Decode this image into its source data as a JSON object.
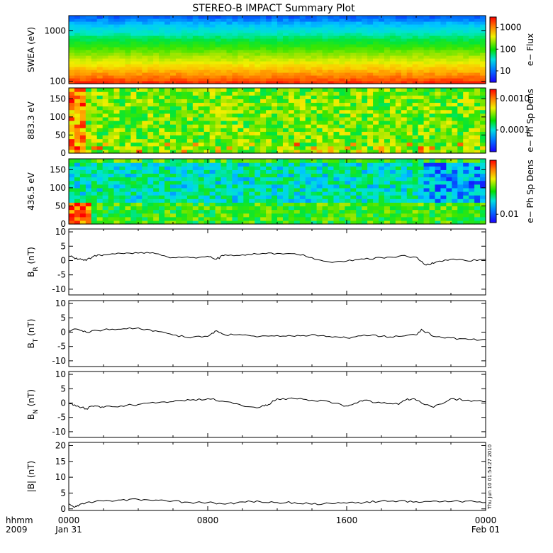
{
  "title": "STEREO-B IMPACT Summary Plot",
  "timestamp": "Thu Jun 10 01:54:27 2010",
  "x_axis": {
    "range": [
      "2009-01-31 00:00",
      "2009-02-01 00:00"
    ],
    "row1_ticks": [
      "0000",
      "0800",
      "1600",
      "0000"
    ],
    "row2_ticks": [
      "Jan 31",
      "",
      "",
      "Feb 01"
    ],
    "corner_row1": "hhmm",
    "corner_row2": "2009"
  },
  "chart_data": [
    {
      "id": "swea",
      "type": "heatmap",
      "ylabel": "SWEA (eV)",
      "ylog": true,
      "ylim": [
        90,
        2000
      ],
      "yticks": [
        "1000",
        "100"
      ],
      "colorbar": {
        "label": "e− Flux",
        "log": true,
        "range": [
          3,
          3000
        ],
        "ticks": [
          "1000",
          "100",
          "10"
        ]
      },
      "description_values": {
        "low_energy_flux": 3000,
        "high_energy_flux": 5
      }
    },
    {
      "id": "pad883",
      "type": "heatmap",
      "ylabel": "883.3 eV",
      "ylim": [
        0,
        180
      ],
      "yticks": [
        "150",
        "100",
        "50",
        "0"
      ],
      "colorbar": {
        "label": "e− Ph Sp Dens",
        "log": true,
        "range": [
          2e-05,
          0.002
        ],
        "ticks": [
          "0.0010",
          "0.0001"
        ]
      }
    },
    {
      "id": "pad436",
      "type": "heatmap",
      "ylabel": "436.5 eV",
      "ylim": [
        0,
        180
      ],
      "yticks": [
        "150",
        "100",
        "50",
        "0"
      ],
      "colorbar": {
        "label": "e− Ph Sp Dens",
        "log": true,
        "range": [
          0.007,
          0.1
        ],
        "ticks": [
          "0.01"
        ]
      }
    },
    {
      "id": "br",
      "type": "line",
      "ylabel": "B",
      "ylabel_sub": "R",
      "ylabel_unit": " (nT)",
      "ylim": [
        -12,
        11
      ],
      "yticks": [
        "10",
        "5",
        "0",
        "-5",
        "-10"
      ],
      "x_hours": [
        0,
        0.3,
        0.6,
        1.0,
        1.5,
        2,
        3,
        4,
        5,
        6,
        7,
        8,
        8.5,
        9,
        10,
        11,
        12,
        13,
        14,
        15,
        16,
        17,
        18,
        19,
        20,
        20.5,
        21,
        22,
        23,
        24
      ],
      "values": [
        1.5,
        1.0,
        0.5,
        0.0,
        1.8,
        2.0,
        2.5,
        2.6,
        2.4,
        1.0,
        1.0,
        1.5,
        0.5,
        2.0,
        2.0,
        2.3,
        2.5,
        2.4,
        1.0,
        -0.5,
        -0.2,
        0.5,
        1.0,
        1.5,
        1.2,
        -1.5,
        -1.0,
        0.5,
        -0.2,
        0.5
      ]
    },
    {
      "id": "bt",
      "type": "line",
      "ylabel": "B",
      "ylabel_sub": "T",
      "ylabel_unit": " (nT)",
      "ylim": [
        -12,
        11
      ],
      "yticks": [
        "10",
        "5",
        "0",
        "-5",
        "-10"
      ],
      "x_hours": [
        0,
        0.5,
        1,
        2,
        3,
        4,
        5,
        6,
        7,
        8,
        8.5,
        9,
        10,
        11,
        12,
        13,
        14,
        15,
        16,
        17,
        18,
        19,
        20,
        20.3,
        21,
        22,
        23,
        24
      ],
      "values": [
        0.5,
        1.0,
        0.0,
        0.8,
        1.0,
        1.5,
        0.5,
        -1.0,
        -2.0,
        -1.5,
        0.5,
        -1.0,
        -1.0,
        -1.5,
        -1.2,
        -1.5,
        -0.8,
        -1.5,
        -2.0,
        -1.0,
        -1.5,
        -1.5,
        -1.0,
        1.0,
        -1.5,
        -2.0,
        -2.5,
        -2.5
      ]
    },
    {
      "id": "bn",
      "type": "line",
      "ylabel": "B",
      "ylabel_sub": "N",
      "ylabel_unit": " (nT)",
      "ylim": [
        -12,
        11
      ],
      "yticks": [
        "10",
        "5",
        "0",
        "-5",
        "-10"
      ],
      "x_hours": [
        0,
        0.5,
        1,
        1.5,
        2,
        3,
        4,
        5,
        6,
        7,
        8,
        9,
        10,
        11,
        11.5,
        12,
        13,
        14,
        15,
        16,
        16.5,
        17,
        18,
        19,
        19.5,
        20,
        21,
        22,
        23,
        24
      ],
      "values": [
        0.0,
        -1.0,
        -2.0,
        -1.0,
        -1.5,
        -1.0,
        -0.5,
        0.0,
        0.5,
        1.0,
        1.5,
        0.5,
        -1.0,
        -1.5,
        -0.5,
        1.5,
        1.5,
        1.0,
        0.5,
        -1.0,
        0.0,
        1.0,
        0.0,
        -0.5,
        1.5,
        1.0,
        -1.5,
        1.5,
        1.0,
        0.5
      ]
    },
    {
      "id": "bmag",
      "type": "line",
      "ylabel": "|B| (nT)",
      "ylim": [
        -0.5,
        21
      ],
      "yticks": [
        "20",
        "15",
        "10",
        "5",
        "0"
      ],
      "x_hours": [
        0,
        0.3,
        0.6,
        1,
        2,
        3,
        4,
        5,
        6,
        7,
        8,
        9,
        10,
        11,
        12,
        13,
        14,
        15,
        16,
        17,
        18,
        19,
        20,
        21,
        22,
        23,
        24
      ],
      "values": [
        1.5,
        0.5,
        1.2,
        2.0,
        2.5,
        2.8,
        3.0,
        2.8,
        2.5,
        2.0,
        2.0,
        1.5,
        2.2,
        2.3,
        2.0,
        2.0,
        1.5,
        1.8,
        1.8,
        2.0,
        2.5,
        2.5,
        2.3,
        2.5,
        2.3,
        2.5,
        2.0
      ]
    }
  ]
}
